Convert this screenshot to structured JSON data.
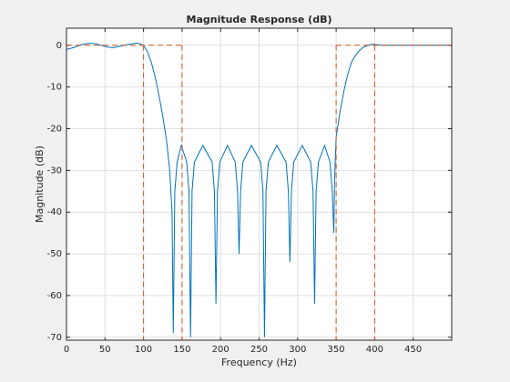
{
  "chart_data": {
    "type": "line",
    "title": "Magnitude Response (dB)",
    "xlabel": "Frequency (Hz)",
    "ylabel": "Magnitude (dB)",
    "xlim": [
      0,
      500
    ],
    "ylim": [
      -70.7,
      4.1
    ],
    "xticks": [
      0,
      50,
      100,
      150,
      200,
      250,
      300,
      350,
      400,
      450
    ],
    "yticks": [
      -70,
      -60,
      -50,
      -40,
      -30,
      -20,
      -10,
      0
    ],
    "grid": true,
    "series": [
      {
        "color": "#0072bd",
        "linestyle": "solid",
        "x": [
          0,
          10,
          20,
          30,
          40,
          50,
          60,
          70,
          80,
          90,
          95,
          100,
          105,
          110,
          115,
          120,
          125,
          130,
          134,
          137,
          138.6,
          140.6,
          143.6,
          149,
          156,
          159,
          161,
          163,
          166,
          177,
          189,
          192,
          194,
          196,
          199,
          209,
          219,
          222,
          224,
          226,
          229,
          240,
          252,
          255,
          257,
          259,
          262,
          273,
          285,
          288,
          290,
          292,
          295,
          306,
          317,
          320,
          322,
          324,
          327,
          335,
          342,
          345,
          347,
          348,
          350,
          355,
          360,
          365,
          370,
          375,
          380,
          385,
          390,
          395,
          400,
          410,
          450,
          500
        ],
        "values": [
          -1,
          -0.5,
          0.2,
          0.5,
          0.3,
          -0.3,
          -0.6,
          -0.2,
          0.2,
          0.5,
          0.4,
          0,
          -1.5,
          -4,
          -7.5,
          -12,
          -17,
          -23,
          -30,
          -40,
          -69,
          -35,
          -28,
          -24,
          -28,
          -35,
          -70,
          -35,
          -28,
          -24,
          -28,
          -35,
          -62,
          -35,
          -28,
          -24,
          -28,
          -35,
          -50,
          -35,
          -28,
          -24,
          -28,
          -35,
          -70,
          -35,
          -28,
          -24,
          -28,
          -35,
          -52,
          -35,
          -28,
          -24,
          -28,
          -35,
          -62,
          -35,
          -28,
          -24,
          -28,
          -35,
          -45,
          -32,
          -22,
          -16,
          -11,
          -7,
          -4,
          -2.5,
          -1.3,
          -0.5,
          -0.1,
          0.2,
          0.2,
          0,
          0,
          0
        ]
      },
      {
        "color": "#d95319",
        "linestyle": "dashed",
        "x": [
          0,
          150,
          null,
          100,
          100,
          null,
          150,
          150,
          null,
          350,
          500,
          null,
          350,
          350,
          null,
          400,
          400
        ],
        "values": [
          0,
          0,
          null,
          0,
          -70.7,
          null,
          0,
          -70.7,
          null,
          0,
          0,
          null,
          0,
          -70.7,
          null,
          0,
          -70.7
        ]
      }
    ]
  }
}
